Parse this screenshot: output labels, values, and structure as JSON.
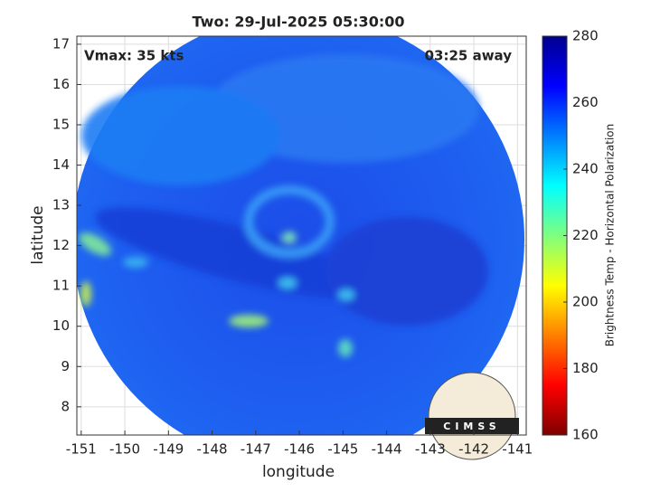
{
  "chart_data": {
    "type": "heatmap",
    "title": "Two: 29-Jul-2025 05:30:00",
    "xlabel": "longitude",
    "ylabel": "latitude",
    "xlim": [
      -151.1,
      -140.8
    ],
    "xticks": [
      -151,
      -150,
      -149,
      -148,
      -147,
      -146,
      -145,
      -144,
      -143,
      -142,
      -141
    ],
    "ylim": [
      7.3,
      17.2
    ],
    "yticks": [
      8,
      9,
      10,
      11,
      12,
      13,
      14,
      15,
      16,
      17
    ],
    "grid": true,
    "annotations": {
      "top_left": "Vmax: 35 kts",
      "top_right": "03:25 away",
      "logo": "CIMSS"
    },
    "colorbar": {
      "label": "Brightness Temp - Horizontal Polarization",
      "lim": [
        160,
        280
      ],
      "ticks": [
        160,
        180,
        200,
        220,
        240,
        260,
        280
      ],
      "colormap": [
        "#7f0000",
        "#ff0000",
        "#ff7f00",
        "#ffff00",
        "#7fff7f",
        "#00ffff",
        "#007fff",
        "#0000ff",
        "#00008f"
      ]
    }
  }
}
